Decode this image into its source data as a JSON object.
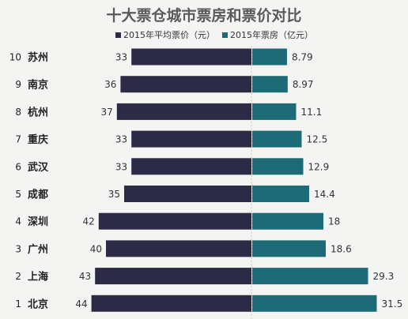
{
  "chart_data": {
    "type": "bar",
    "title": "十大票仓城市票房和票价对比",
    "legend_position": "top",
    "grid": false,
    "categories": [
      {
        "rank": "10",
        "city": "苏州"
      },
      {
        "rank": "9",
        "city": "南京"
      },
      {
        "rank": "8",
        "city": "杭州"
      },
      {
        "rank": "7",
        "city": "重庆"
      },
      {
        "rank": "6",
        "city": "武汉"
      },
      {
        "rank": "5",
        "city": "成都"
      },
      {
        "rank": "4",
        "city": "深圳"
      },
      {
        "rank": "3",
        "city": "广州"
      },
      {
        "rank": "2",
        "city": "上海"
      },
      {
        "rank": "1",
        "city": "北京"
      }
    ],
    "series": [
      {
        "name": "2015年平均票价（元）",
        "color": "#2b2b45",
        "direction": "left",
        "values": [
          33,
          36,
          37,
          33,
          33,
          35,
          42,
          40,
          43,
          44
        ],
        "labels": [
          "33",
          "36",
          "37",
          "33",
          "33",
          "35",
          "42",
          "40",
          "43",
          "44"
        ]
      },
      {
        "name": "2015年票房（亿元）",
        "color": "#1e6b78",
        "direction": "right",
        "values": [
          8.79,
          8.97,
          11.1,
          12.5,
          12.9,
          14.4,
          18,
          18.6,
          29.3,
          31.5
        ],
        "labels": [
          "8.79",
          "8.97",
          "11.1",
          "12.5",
          "12.9",
          "14.4",
          "18",
          "18.6",
          "29.3",
          "31.5"
        ]
      }
    ]
  }
}
